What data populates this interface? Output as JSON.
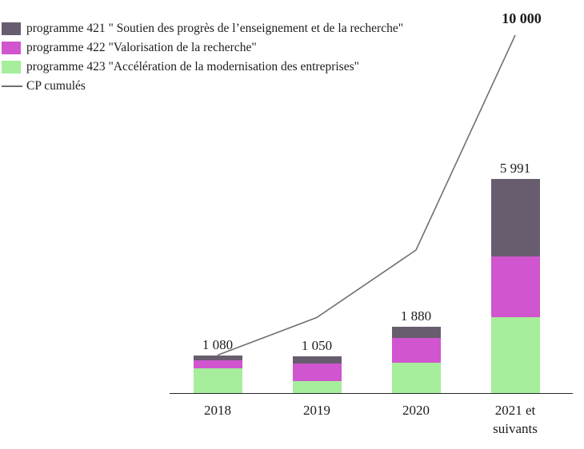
{
  "chart_data": {
    "type": "bar",
    "stacked": true,
    "title": "",
    "xlabel": "",
    "ylabel": "",
    "ylim": [
      0,
      10000
    ],
    "grid": false,
    "legend_position": "top-left",
    "categories": [
      "2018",
      "2019",
      "2020",
      "2021 et suivants"
    ],
    "series": [
      {
        "name": "programme 421 \" Soutien des progrès de l’enseignement et de la recherche\"",
        "color": "#685d6e",
        "values": [
          150,
          200,
          320,
          2160
        ]
      },
      {
        "name": "programme 422 \"Valorisation de la recherche\"",
        "color": "#d055ce",
        "values": [
          225,
          490,
          690,
          1690
        ]
      },
      {
        "name": "programme 423 \"Accélération de la modernisation des entreprises\"",
        "color": "#a6ed9c",
        "values": [
          705,
          360,
          870,
          2141
        ]
      }
    ],
    "stack_order_bottom_to_top": [
      2,
      1,
      0
    ],
    "totals": [
      1080,
      1050,
      1880,
      5991
    ],
    "total_labels": [
      "1 080",
      "1 050",
      "1 880",
      "5 991"
    ],
    "line": {
      "name": "CP cumulés",
      "color": "#756c76",
      "values": [
        1080,
        2130,
        4010,
        10000
      ],
      "end_label": "10 000"
    },
    "axis_color": "#27272b"
  }
}
